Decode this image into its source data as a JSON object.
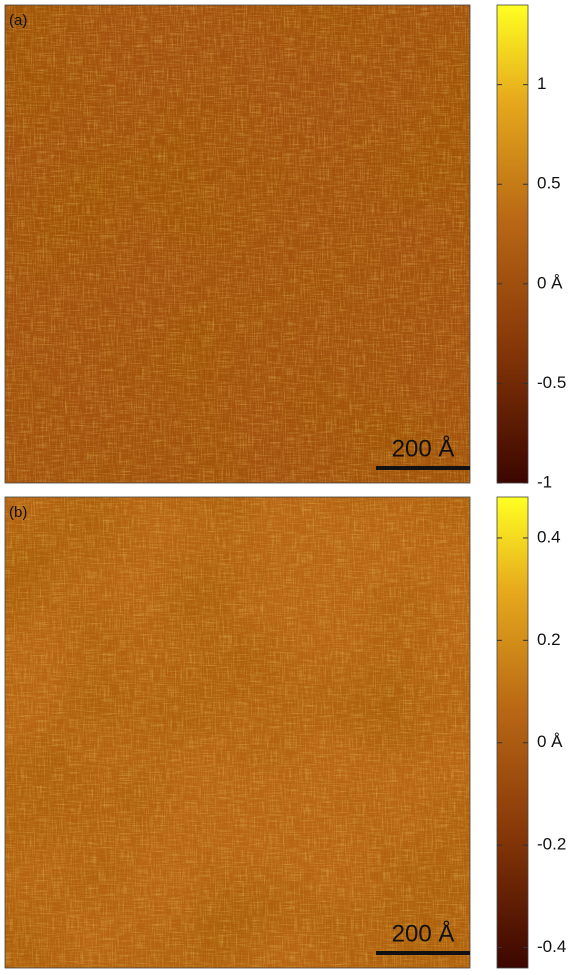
{
  "chart_data": [
    {
      "type": "image",
      "panel_label": "(a)",
      "scale_bar_label": "200 Å",
      "clim": [
        -1,
        1.4
      ],
      "cticks": [
        -1,
        -0.5,
        {
          "value": 0,
          "label": "0 Å"
        },
        0.5,
        1
      ]
    },
    {
      "type": "image",
      "panel_label": "(b)",
      "scale_bar_label": "200 Å",
      "clim": [
        -0.44,
        0.48
      ],
      "cticks": [
        -0.4,
        -0.2,
        {
          "value": 0,
          "label": "0 Å"
        },
        0.2,
        0.4
      ]
    }
  ]
}
